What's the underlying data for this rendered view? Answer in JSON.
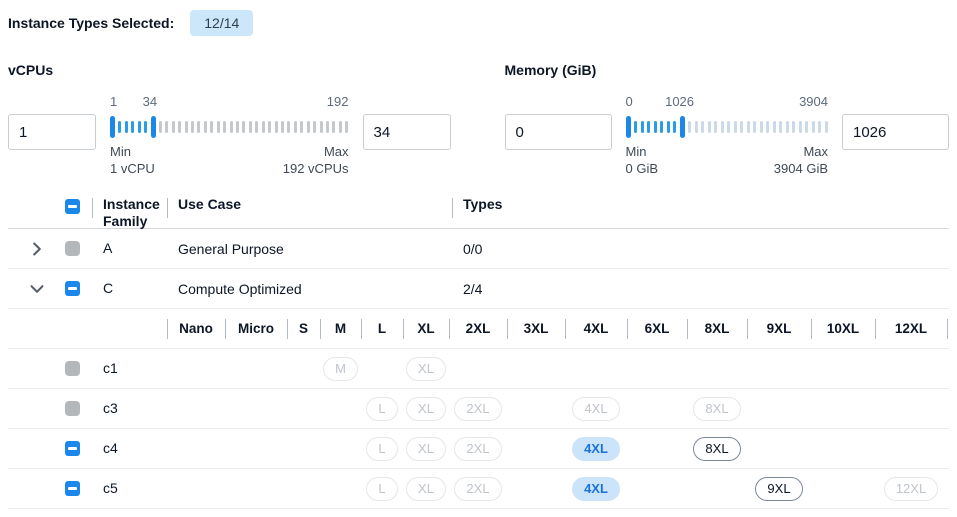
{
  "header": {
    "label": "Instance Types Selected:",
    "count_badge": "12/14"
  },
  "filters": [
    {
      "id": "vcpus",
      "title": "vCPUs",
      "low_input": "1",
      "high_input": "34",
      "range_min": 1,
      "range_max": 192,
      "scale_labels": [
        "1",
        "34",
        "192"
      ],
      "min_caption": [
        "Min",
        "1 vCPU"
      ],
      "max_caption": [
        "Max",
        "192 vCPUs"
      ],
      "selected_ticks": 5,
      "unselected_ticks": 30,
      "unselected_tick_color": "#c6c9cc"
    },
    {
      "id": "memory",
      "title": "Memory (GiB)",
      "low_input": "0",
      "high_input": "1026",
      "range_min": 0,
      "range_max": 3904,
      "scale_labels": [
        "0",
        "1026",
        "3904"
      ],
      "min_caption": [
        "Min",
        "0 GiB"
      ],
      "max_caption": [
        "Max",
        "3904 GiB"
      ],
      "selected_ticks": 7,
      "unselected_ticks": 22,
      "unselected_tick_color": "#ccd9e8"
    }
  ],
  "table": {
    "columns": {
      "family": "Instance Family",
      "use_case": "Use Case",
      "types": "Types"
    },
    "select_all_state": "indeterminate",
    "family_rows": [
      {
        "family": "A",
        "use_case": "General Purpose",
        "types": "0/0",
        "expanded": false,
        "checkbox": "disabled"
      },
      {
        "family": "C",
        "use_case": "Compute Optimized",
        "types": "2/4",
        "expanded": true,
        "checkbox": "indeterminate"
      }
    ],
    "size_columns": [
      "Nano",
      "Micro",
      "S",
      "M",
      "L",
      "XL",
      "2XL",
      "3XL",
      "4XL",
      "6XL",
      "8XL",
      "9XL",
      "10XL",
      "12XL"
    ],
    "type_rows": [
      {
        "name": "c1",
        "checkbox": "disabled",
        "badges": [
          {
            "size": "M",
            "state": "disabled"
          },
          {
            "size": "XL",
            "state": "disabled"
          }
        ]
      },
      {
        "name": "c3",
        "checkbox": "disabled",
        "badges": [
          {
            "size": "L",
            "state": "disabled"
          },
          {
            "size": "XL",
            "state": "disabled"
          },
          {
            "size": "2XL",
            "state": "disabled"
          },
          {
            "size": "4XL",
            "state": "disabled"
          },
          {
            "size": "8XL",
            "state": "disabled"
          }
        ]
      },
      {
        "name": "c4",
        "checkbox": "indeterminate",
        "badges": [
          {
            "size": "L",
            "state": "disabled"
          },
          {
            "size": "XL",
            "state": "disabled"
          },
          {
            "size": "2XL",
            "state": "disabled"
          },
          {
            "size": "4XL",
            "state": "selected"
          },
          {
            "size": "8XL",
            "state": "unselected"
          }
        ]
      },
      {
        "name": "c5",
        "checkbox": "indeterminate",
        "badges": [
          {
            "size": "L",
            "state": "disabled"
          },
          {
            "size": "XL",
            "state": "disabled"
          },
          {
            "size": "2XL",
            "state": "disabled"
          },
          {
            "size": "4XL",
            "state": "selected"
          },
          {
            "size": "9XL",
            "state": "unselected"
          },
          {
            "size": "12XL",
            "state": "disabled"
          }
        ]
      }
    ]
  },
  "icons": {
    "expand_collapsed": "chevron-right-icon",
    "expand_expanded": "chevron-down-icon",
    "checkbox_partial": "indeterminate-dash-icon"
  },
  "colors": {
    "accent_blue": "#1b87ea",
    "selected_tick_blue": "#2b9ce8",
    "count_badge_bg": "#cce7fa",
    "selected_pill_bg": "#cbe4fa",
    "selected_pill_text": "#1a72d8"
  }
}
